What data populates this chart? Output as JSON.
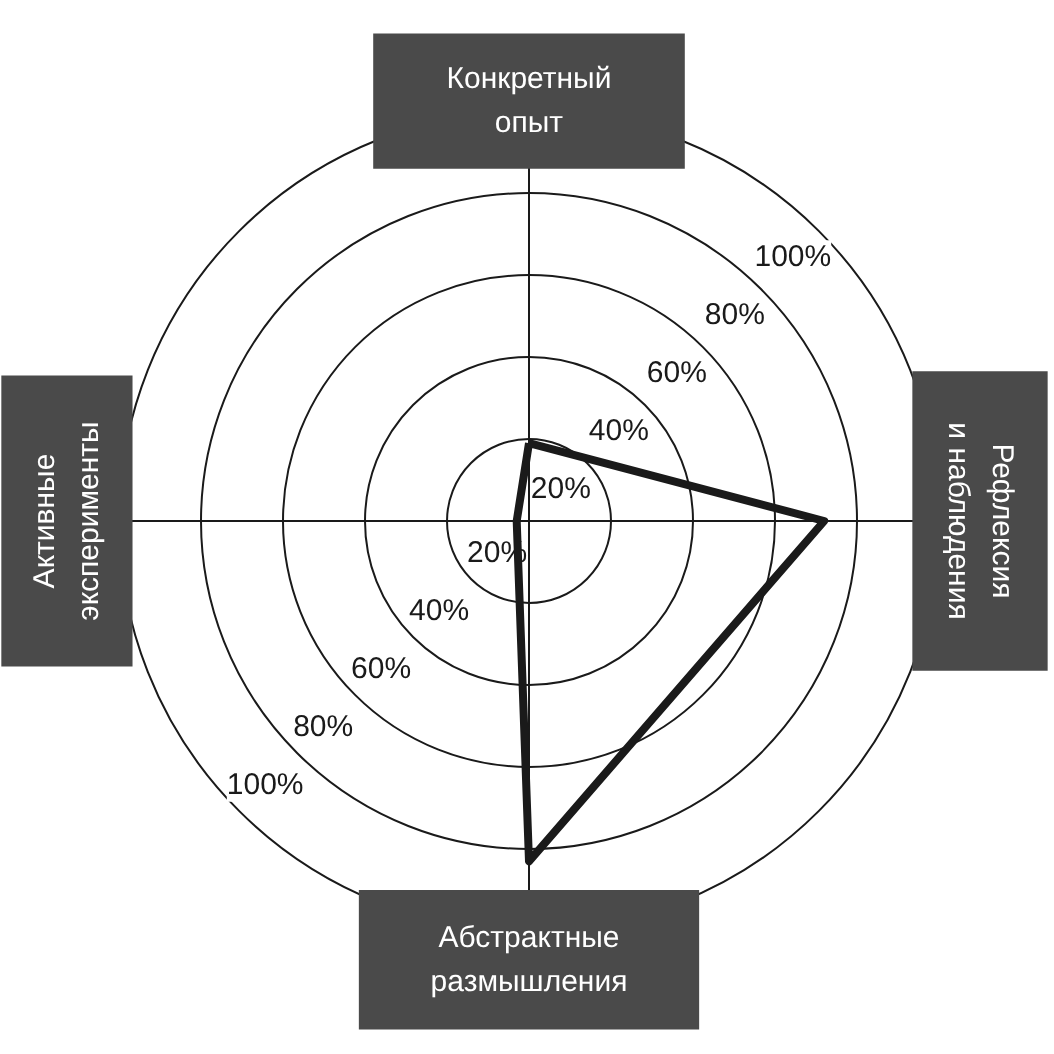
{
  "chart_data": {
    "type": "radar",
    "categories": [
      "Конкретный опыт",
      "Рефлексия и наблюдения",
      "Абстрактные размышления",
      "Активные эксперименты"
    ],
    "series": [
      {
        "color": "#1a1a1a",
        "values": [
          19,
          72,
          83,
          3
        ]
      }
    ],
    "ylim": [
      0,
      100
    ],
    "yticks": [
      {
        "value": 20,
        "label": "20%"
      },
      {
        "value": 40,
        "label": "40%"
      },
      {
        "value": 60,
        "label": "60%"
      },
      {
        "value": 80,
        "label": "80%"
      },
      {
        "value": 100,
        "label": "100%"
      }
    ],
    "grid": true,
    "marker": "none",
    "line_style": "solid"
  }
}
